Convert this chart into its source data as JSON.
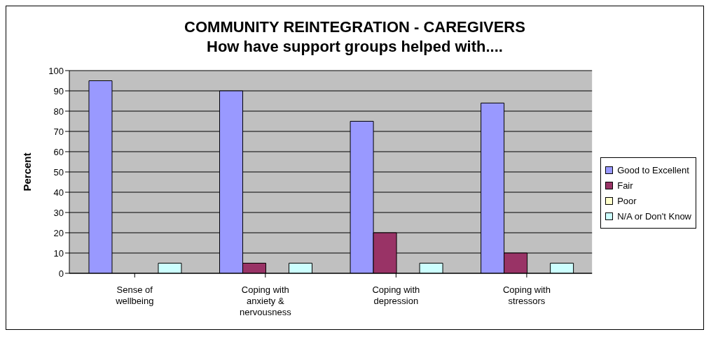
{
  "chart_data": {
    "type": "bar",
    "title": "COMMUNITY REINTEGRATION - CAREGIVERS",
    "subtitle": "How have support groups helped with....",
    "ylabel": "Percent",
    "categories": [
      "Sense of wellbeing",
      "Coping with anxiety & nervousness",
      "Coping with depression",
      "Coping with stressors"
    ],
    "series": [
      {
        "name": "Good to Excellent",
        "color": "#9999ff",
        "values": [
          95,
          90,
          75,
          84
        ]
      },
      {
        "name": "Fair",
        "color": "#993366",
        "values": [
          0,
          5,
          20,
          10
        ]
      },
      {
        "name": "Poor",
        "color": "#ffffcc",
        "values": [
          0,
          0,
          0,
          0
        ]
      },
      {
        "name": "N/A or Don't Know",
        "color": "#ccffff",
        "values": [
          5,
          5,
          5,
          5
        ]
      }
    ],
    "ylim": [
      0,
      100
    ],
    "yticks": [
      0,
      10,
      20,
      30,
      40,
      50,
      60,
      70,
      80,
      90,
      100
    ],
    "grid": "y",
    "legend": "right"
  }
}
